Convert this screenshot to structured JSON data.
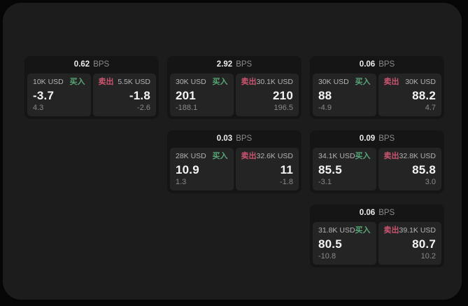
{
  "page": {
    "bg": "#060606",
    "panel_bg": "#1c1c1c"
  },
  "labels": {
    "bps_unit": "BPS",
    "buy": "买入",
    "sell": "卖出"
  },
  "colors": {
    "buy_accent": "#58a677",
    "sell_accent": "#ca5570",
    "card_bg": "#151515",
    "tile_bg": "#242424"
  },
  "cards": [
    {
      "col": 1,
      "row": 1,
      "bps": "0.62",
      "buy": {
        "size": "10K USD",
        "value": "-3.7",
        "delta": "4.3"
      },
      "sell": {
        "size": "5.5K USD",
        "value": "-1.8",
        "delta": "-2.6"
      }
    },
    {
      "col": 2,
      "row": 1,
      "bps": "2.92",
      "buy": {
        "size": "30K USD",
        "value": "201",
        "delta": "-188.1"
      },
      "sell": {
        "size": "30.1K USD",
        "value": "210",
        "delta": "196.5"
      }
    },
    {
      "col": 3,
      "row": 1,
      "bps": "0.06",
      "buy": {
        "size": "30K USD",
        "value": "88",
        "delta": "-4.9"
      },
      "sell": {
        "size": "30K USD",
        "value": "88.2",
        "delta": "4.7"
      }
    },
    {
      "col": 2,
      "row": 2,
      "bps": "0.03",
      "buy": {
        "size": "28K USD",
        "value": "10.9",
        "delta": "1.3"
      },
      "sell": {
        "size": "32.6K USD",
        "value": "11",
        "delta": "-1.8"
      }
    },
    {
      "col": 3,
      "row": 2,
      "bps": "0.09",
      "buy": {
        "size": "34.1K USD",
        "value": "85.5",
        "delta": "-3.1"
      },
      "sell": {
        "size": "32.8K USD",
        "value": "85.8",
        "delta": "3.0"
      }
    },
    {
      "col": 3,
      "row": 3,
      "bps": "0.06",
      "buy": {
        "size": "31.8K USD",
        "value": "80.5",
        "delta": "-10.8"
      },
      "sell": {
        "size": "39.1K USD",
        "value": "80.7",
        "delta": "10.2"
      }
    }
  ]
}
